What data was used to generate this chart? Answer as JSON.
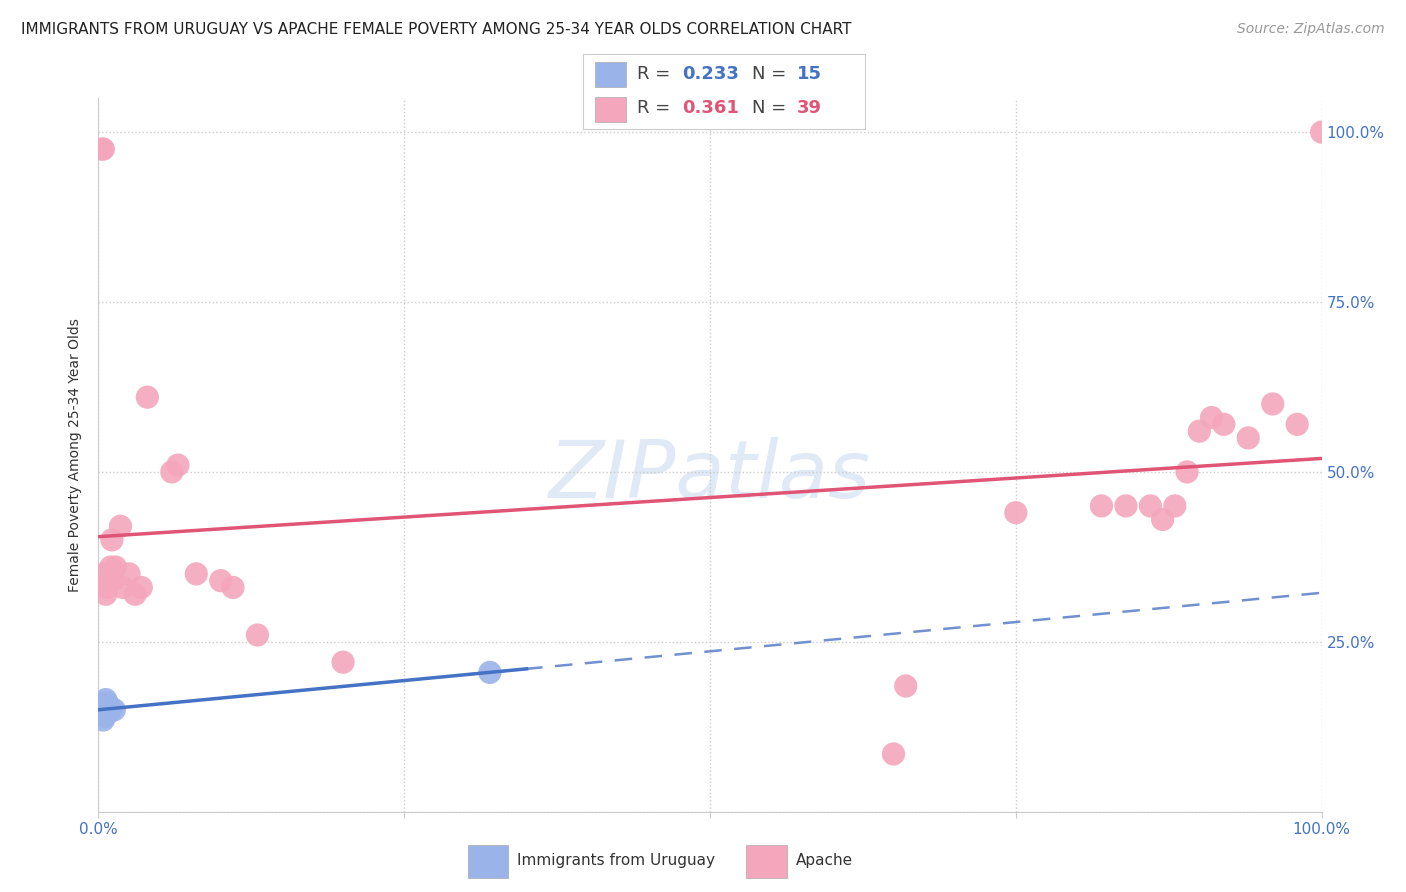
{
  "title": "IMMIGRANTS FROM URUGUAY VS APACHE FEMALE POVERTY AMONG 25-34 YEAR OLDS CORRELATION CHART",
  "source": "Source: ZipAtlas.com",
  "ylabel": "Female Poverty Among 25-34 Year Olds",
  "xlim": [
    0.0,
    1.0
  ],
  "ylim": [
    0.0,
    1.05
  ],
  "background_color": "#ffffff",
  "grid_color": "#cccccc",
  "blue_scatter_x": [
    0.002,
    0.003,
    0.004,
    0.004,
    0.005,
    0.005,
    0.006,
    0.006,
    0.007,
    0.007,
    0.008,
    0.009,
    0.01,
    0.013,
    0.32
  ],
  "blue_scatter_y": [
    0.155,
    0.145,
    0.135,
    0.15,
    0.16,
    0.14,
    0.165,
    0.15,
    0.155,
    0.16,
    0.145,
    0.155,
    0.15,
    0.15,
    0.205
  ],
  "pink_scatter_x": [
    0.003,
    0.004,
    0.005,
    0.006,
    0.007,
    0.008,
    0.01,
    0.011,
    0.012,
    0.014,
    0.018,
    0.02,
    0.025,
    0.03,
    0.035,
    0.04,
    0.06,
    0.065,
    0.08,
    0.1,
    0.11,
    0.13,
    0.2,
    0.65,
    0.66,
    0.75,
    0.82,
    0.84,
    0.86,
    0.87,
    0.88,
    0.89,
    0.9,
    0.91,
    0.92,
    0.94,
    0.96,
    0.98,
    1.0
  ],
  "pink_scatter_y": [
    0.975,
    0.975,
    0.35,
    0.32,
    0.33,
    0.34,
    0.36,
    0.4,
    0.34,
    0.36,
    0.42,
    0.33,
    0.35,
    0.32,
    0.33,
    0.61,
    0.5,
    0.51,
    0.35,
    0.34,
    0.33,
    0.26,
    0.22,
    0.085,
    0.185,
    0.44,
    0.45,
    0.45,
    0.45,
    0.43,
    0.45,
    0.5,
    0.56,
    0.58,
    0.57,
    0.55,
    0.6,
    0.57,
    1.0
  ],
  "blue_R": 0.233,
  "blue_N": 15,
  "pink_R": 0.361,
  "pink_N": 39,
  "blue_line_color": "#4472c4",
  "pink_line_color": "#e05575",
  "blue_scatter_color": "#9ab3e8",
  "pink_scatter_color": "#f4a7bc",
  "blue_dash_color": "#7090d0",
  "title_fontsize": 11,
  "source_fontsize": 10,
  "axis_label_fontsize": 10,
  "tick_fontsize": 11,
  "legend_fontsize": 13
}
